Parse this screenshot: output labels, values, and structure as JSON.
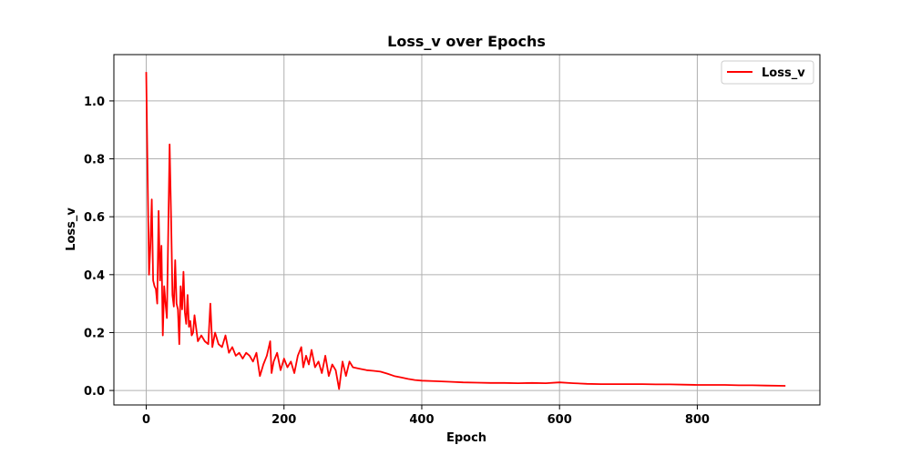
{
  "chart_data": {
    "type": "line",
    "title": "Loss_v over Epochs",
    "xlabel": "Epoch",
    "ylabel": "Loss_v",
    "xlim": [
      -47,
      978
    ],
    "ylim": [
      -0.05,
      1.16
    ],
    "xticks": [
      0,
      200,
      400,
      600,
      800
    ],
    "yticks": [
      0.0,
      0.2,
      0.4,
      0.6,
      0.8,
      1.0
    ],
    "xtick_labels": [
      "0",
      "200",
      "400",
      "600",
      "800"
    ],
    "ytick_labels": [
      "0.0",
      "0.2",
      "0.4",
      "0.6",
      "0.8",
      "1.0"
    ],
    "grid": true,
    "legend_position": "top-right",
    "series": [
      {
        "name": "Loss_v",
        "color": "#ff0000",
        "x": [
          0,
          2,
          4,
          6,
          8,
          10,
          12,
          14,
          16,
          18,
          20,
          22,
          24,
          26,
          28,
          30,
          32,
          34,
          36,
          38,
          40,
          42,
          44,
          46,
          48,
          50,
          52,
          54,
          56,
          58,
          60,
          62,
          64,
          66,
          68,
          70,
          75,
          80,
          85,
          90,
          93,
          96,
          100,
          105,
          110,
          115,
          120,
          125,
          130,
          135,
          140,
          145,
          150,
          155,
          160,
          165,
          170,
          175,
          180,
          182,
          185,
          190,
          195,
          200,
          205,
          210,
          215,
          220,
          225,
          228,
          232,
          236,
          240,
          245,
          250,
          255,
          260,
          265,
          270,
          275,
          280,
          285,
          290,
          295,
          300,
          310,
          320,
          330,
          340,
          350,
          360,
          370,
          380,
          390,
          400,
          420,
          440,
          460,
          480,
          500,
          520,
          540,
          560,
          580,
          600,
          620,
          640,
          660,
          680,
          700,
          720,
          740,
          760,
          780,
          800,
          820,
          840,
          860,
          880,
          900,
          928
        ],
        "y": [
          1.1,
          0.75,
          0.4,
          0.5,
          0.66,
          0.38,
          0.36,
          0.35,
          0.3,
          0.62,
          0.38,
          0.5,
          0.19,
          0.36,
          0.3,
          0.25,
          0.55,
          0.85,
          0.6,
          0.33,
          0.29,
          0.45,
          0.3,
          0.28,
          0.16,
          0.36,
          0.28,
          0.41,
          0.27,
          0.23,
          0.33,
          0.22,
          0.24,
          0.19,
          0.2,
          0.26,
          0.17,
          0.19,
          0.17,
          0.16,
          0.3,
          0.15,
          0.2,
          0.16,
          0.15,
          0.19,
          0.13,
          0.15,
          0.12,
          0.13,
          0.11,
          0.13,
          0.12,
          0.1,
          0.13,
          0.05,
          0.09,
          0.12,
          0.17,
          0.06,
          0.1,
          0.13,
          0.07,
          0.11,
          0.08,
          0.1,
          0.06,
          0.12,
          0.15,
          0.08,
          0.12,
          0.09,
          0.14,
          0.08,
          0.1,
          0.06,
          0.12,
          0.05,
          0.09,
          0.07,
          0.005,
          0.1,
          0.05,
          0.1,
          0.08,
          0.075,
          0.07,
          0.068,
          0.065,
          0.058,
          0.05,
          0.045,
          0.04,
          0.036,
          0.034,
          0.032,
          0.03,
          0.028,
          0.027,
          0.026,
          0.026,
          0.025,
          0.026,
          0.025,
          0.028,
          0.025,
          0.023,
          0.022,
          0.022,
          0.022,
          0.022,
          0.021,
          0.021,
          0.02,
          0.019,
          0.019,
          0.019,
          0.018,
          0.018,
          0.017,
          0.016
        ]
      }
    ]
  }
}
